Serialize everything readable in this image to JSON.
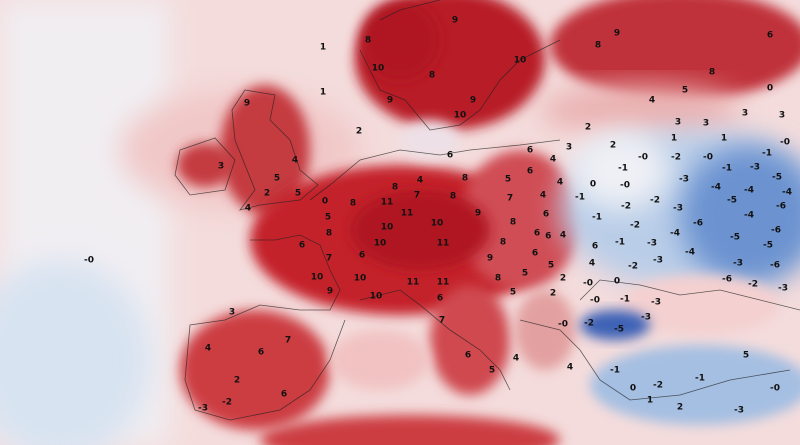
{
  "map": {
    "type": "temperature anomaly map",
    "region": "Europe",
    "colors": {
      "warm_strong": "#b51a22",
      "warm": "#d04a4e",
      "warm_light": "#f3c6c6",
      "neutral": "#f6eeee",
      "cool": "#a9c2e4",
      "cool_strong": "#3f66b8"
    },
    "labels": [
      "-0",
      "1",
      "1",
      "2",
      "9",
      "3",
      "5",
      "2",
      "4",
      "4",
      "5",
      "0",
      "5",
      "8",
      "6",
      "7",
      "10",
      "10",
      "9",
      "10",
      "6",
      "10",
      "11",
      "10",
      "8",
      "11",
      "8",
      "7",
      "4",
      "8",
      "8",
      "10",
      "11",
      "9",
      "8",
      "6",
      "6",
      "9",
      "8",
      "11",
      "11",
      "8",
      "5",
      "5",
      "6",
      "7",
      "5",
      "6",
      "9",
      "10",
      "6",
      "3",
      "3",
      "3",
      "3",
      "1",
      "1",
      "-0",
      "-1",
      "-0",
      "-2",
      "-0",
      "-1",
      "-3",
      "-5",
      "-1",
      "-3",
      "-4",
      "-4",
      "-4",
      "-0",
      "0",
      "-1",
      "-2",
      "-2",
      "-3",
      "-5",
      "-6",
      "-4",
      "-1",
      "-2",
      "-6",
      "-6",
      "-4",
      "-5",
      "-5",
      "-1",
      "-3",
      "-4",
      "-3",
      "-3",
      "-6",
      "-2",
      "-6",
      "-2",
      "-3",
      "-0",
      "0",
      "-0",
      "-1",
      "-3",
      "-3",
      "-2",
      "-5",
      "4",
      "2",
      "3",
      "2",
      "6",
      "4",
      "4",
      "6",
      "6",
      "4",
      "6",
      "4",
      "5",
      "2",
      "2",
      "-0",
      "9",
      "8",
      "10",
      "9",
      "8",
      "10",
      "5",
      "9",
      "8",
      "8",
      "4",
      "0",
      "6",
      "3",
      "7",
      "4",
      "6",
      "2",
      "-3",
      "-2",
      "6",
      "7",
      "6",
      "4",
      "5",
      "-2",
      "-1",
      "-0",
      "2",
      "-3",
      "5",
      "1",
      "0",
      "-1",
      "4"
    ]
  }
}
